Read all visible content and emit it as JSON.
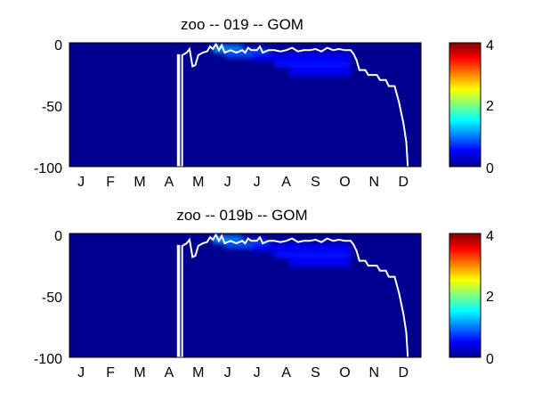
{
  "chart_data": [
    {
      "type": "heatmap",
      "title": "zoo -- 019 -- GOM",
      "xlabel": "",
      "ylabel": "",
      "x_tick_labels": [
        "J",
        "F",
        "M",
        "A",
        "M",
        "J",
        "J",
        "A",
        "S",
        "O",
        "N",
        "D"
      ],
      "y_tick_labels": [
        "0",
        "-50",
        "-100"
      ],
      "xlim": [
        0,
        12
      ],
      "ylim": [
        -100,
        0
      ],
      "clim": [
        0,
        4
      ],
      "colorbar_tick_labels": [
        "0",
        "2",
        "4"
      ],
      "colormap": "jet",
      "background_value": 0,
      "blobs": [
        {
          "x0": 4.9,
          "x1": 5.9,
          "depth_top": 2,
          "depth_bottom": 8,
          "value": 1.1
        },
        {
          "x0": 5.3,
          "x1": 6.8,
          "depth_top": 5,
          "depth_bottom": 12,
          "value": 0.8
        },
        {
          "x0": 6.2,
          "x1": 9.6,
          "depth_top": 8,
          "depth_bottom": 15,
          "value": 0.45
        },
        {
          "x0": 7.0,
          "x1": 9.6,
          "depth_top": 15,
          "depth_bottom": 20,
          "value": 0.55
        },
        {
          "x0": 7.5,
          "x1": 9.6,
          "depth_top": 20,
          "depth_bottom": 27,
          "value": 0.45
        }
      ],
      "line": {
        "color": "#ffffff",
        "points": [
          [
            3.7,
            -100
          ],
          [
            3.7,
            -10
          ],
          [
            3.75,
            -10
          ],
          [
            3.75,
            -100
          ],
          [
            3.85,
            -100
          ],
          [
            3.85,
            -10
          ],
          [
            4.0,
            -8
          ],
          [
            4.1,
            -5
          ],
          [
            4.2,
            -19
          ],
          [
            4.3,
            -18
          ],
          [
            4.4,
            -10
          ],
          [
            4.55,
            -8
          ],
          [
            4.7,
            -7
          ],
          [
            4.8,
            -3
          ],
          [
            4.9,
            -5
          ],
          [
            5.0,
            -1
          ],
          [
            5.1,
            -6
          ],
          [
            5.2,
            -2
          ],
          [
            5.3,
            -8
          ],
          [
            5.5,
            -6
          ],
          [
            5.7,
            -8
          ],
          [
            5.9,
            -6
          ],
          [
            6.0,
            -8
          ],
          [
            6.1,
            -4
          ],
          [
            6.2,
            -6
          ],
          [
            6.4,
            -6
          ],
          [
            6.5,
            -3
          ],
          [
            6.6,
            -8
          ],
          [
            6.8,
            -6
          ],
          [
            7.0,
            -6
          ],
          [
            7.2,
            -7
          ],
          [
            7.4,
            -6
          ],
          [
            7.6,
            -4
          ],
          [
            7.8,
            -7
          ],
          [
            8.0,
            -6
          ],
          [
            8.2,
            -6
          ],
          [
            8.4,
            -5
          ],
          [
            8.6,
            -7
          ],
          [
            8.8,
            -4
          ],
          [
            9.0,
            -6
          ],
          [
            9.2,
            -5
          ],
          [
            9.4,
            -6
          ],
          [
            9.6,
            -6
          ],
          [
            9.7,
            -9
          ],
          [
            9.8,
            -14
          ],
          [
            9.9,
            -22
          ],
          [
            10.1,
            -22
          ],
          [
            10.2,
            -26
          ],
          [
            10.5,
            -26
          ],
          [
            10.6,
            -30
          ],
          [
            10.8,
            -30
          ],
          [
            10.9,
            -35
          ],
          [
            11.1,
            -35
          ],
          [
            11.25,
            -48
          ],
          [
            11.4,
            -65
          ],
          [
            11.5,
            -80
          ],
          [
            11.55,
            -100
          ]
        ]
      }
    },
    {
      "type": "heatmap",
      "title": "zoo -- 019b -- GOM",
      "xlabel": "",
      "ylabel": "",
      "x_tick_labels": [
        "J",
        "F",
        "M",
        "A",
        "M",
        "J",
        "J",
        "A",
        "S",
        "O",
        "N",
        "D"
      ],
      "y_tick_labels": [
        "0",
        "-50",
        "-100"
      ],
      "xlim": [
        0,
        12
      ],
      "ylim": [
        -100,
        0
      ],
      "clim": [
        0,
        4
      ],
      "colorbar_tick_labels": [
        "0",
        "2",
        "4"
      ],
      "colormap": "jet",
      "background_value": 0,
      "blobs": [
        {
          "x0": 4.9,
          "x1": 5.9,
          "depth_top": 2,
          "depth_bottom": 8,
          "value": 1.1
        },
        {
          "x0": 5.3,
          "x1": 6.8,
          "depth_top": 5,
          "depth_bottom": 12,
          "value": 0.8
        },
        {
          "x0": 6.2,
          "x1": 9.6,
          "depth_top": 8,
          "depth_bottom": 15,
          "value": 0.45
        },
        {
          "x0": 7.0,
          "x1": 9.6,
          "depth_top": 15,
          "depth_bottom": 20,
          "value": 0.55
        },
        {
          "x0": 7.5,
          "x1": 9.6,
          "depth_top": 20,
          "depth_bottom": 27,
          "value": 0.45
        }
      ],
      "line": {
        "color": "#ffffff",
        "points": [
          [
            3.7,
            -100
          ],
          [
            3.7,
            -10
          ],
          [
            3.75,
            -10
          ],
          [
            3.75,
            -100
          ],
          [
            3.85,
            -100
          ],
          [
            3.85,
            -10
          ],
          [
            4.0,
            -8
          ],
          [
            4.1,
            -5
          ],
          [
            4.2,
            -19
          ],
          [
            4.3,
            -18
          ],
          [
            4.4,
            -10
          ],
          [
            4.55,
            -8
          ],
          [
            4.7,
            -7
          ],
          [
            4.8,
            -3
          ],
          [
            4.9,
            -5
          ],
          [
            5.0,
            -1
          ],
          [
            5.1,
            -6
          ],
          [
            5.2,
            -2
          ],
          [
            5.3,
            -8
          ],
          [
            5.5,
            -6
          ],
          [
            5.7,
            -8
          ],
          [
            5.9,
            -6
          ],
          [
            6.0,
            -8
          ],
          [
            6.1,
            -4
          ],
          [
            6.2,
            -6
          ],
          [
            6.4,
            -6
          ],
          [
            6.5,
            -3
          ],
          [
            6.6,
            -8
          ],
          [
            6.8,
            -6
          ],
          [
            7.0,
            -6
          ],
          [
            7.2,
            -7
          ],
          [
            7.4,
            -6
          ],
          [
            7.6,
            -4
          ],
          [
            7.8,
            -7
          ],
          [
            8.0,
            -6
          ],
          [
            8.2,
            -6
          ],
          [
            8.4,
            -5
          ],
          [
            8.6,
            -7
          ],
          [
            8.8,
            -4
          ],
          [
            9.0,
            -6
          ],
          [
            9.2,
            -5
          ],
          [
            9.4,
            -6
          ],
          [
            9.6,
            -6
          ],
          [
            9.7,
            -9
          ],
          [
            9.8,
            -14
          ],
          [
            9.9,
            -22
          ],
          [
            10.1,
            -22
          ],
          [
            10.2,
            -26
          ],
          [
            10.5,
            -26
          ],
          [
            10.6,
            -30
          ],
          [
            10.8,
            -30
          ],
          [
            10.9,
            -35
          ],
          [
            11.1,
            -35
          ],
          [
            11.25,
            -48
          ],
          [
            11.4,
            -65
          ],
          [
            11.5,
            -80
          ],
          [
            11.55,
            -100
          ]
        ]
      }
    }
  ]
}
